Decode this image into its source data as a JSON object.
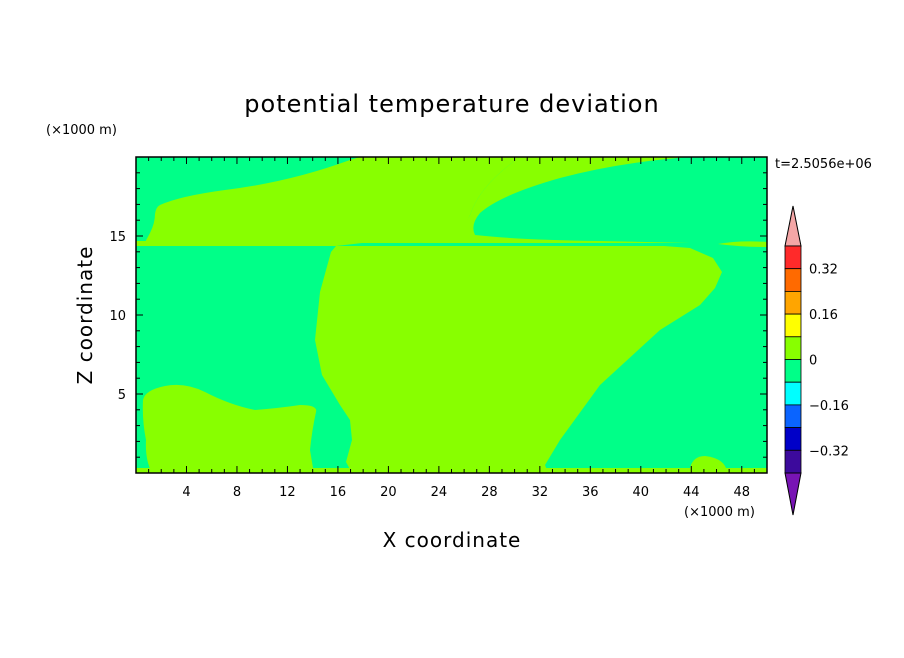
{
  "chart_data": {
    "type": "heatmap",
    "title": "potential temperature deviation",
    "xlabel": "X coordinate",
    "ylabel": "Z coordinate",
    "x_unit": "(×1000 m)",
    "y_unit": "(×1000 m)",
    "time_label": "t=2.5056e+06",
    "xlim": [
      0,
      50
    ],
    "ylim": [
      0,
      20
    ],
    "x_ticks": [
      4,
      8,
      12,
      16,
      20,
      24,
      28,
      32,
      36,
      40,
      44,
      48
    ],
    "y_ticks": [
      5,
      10,
      15
    ],
    "background_level": "-0.08 to 0",
    "region_level": "0 to 0.08",
    "colorbar": {
      "levels": [
        {
          "range": "above 0.40",
          "color": "#f4a6a6"
        },
        {
          "range": "0.32 to 0.40",
          "color": "#ff2a2a"
        },
        {
          "range": "0.24 to 0.32",
          "color": "#ff6a00"
        },
        {
          "range": "0.16 to 0.24",
          "color": "#ffa500"
        },
        {
          "range": "0.08 to 0.16",
          "color": "#ffff00"
        },
        {
          "range": "0 to 0.08",
          "color": "#88ff00"
        },
        {
          "range": "-0.08 to 0",
          "color": "#00ff88"
        },
        {
          "range": "-0.16 to -0.08",
          "color": "#00ffff"
        },
        {
          "range": "-0.24 to -0.16",
          "color": "#0a64ff"
        },
        {
          "range": "-0.32 to -0.24",
          "color": "#0000c8"
        },
        {
          "range": "-0.40 to -0.32",
          "color": "#3c0a9c"
        },
        {
          "range": "below -0.40",
          "color": "#7814b4"
        }
      ],
      "tick_labels": [
        "0.32",
        "0.16",
        "0",
        "−0.16",
        "−0.32"
      ]
    }
  }
}
